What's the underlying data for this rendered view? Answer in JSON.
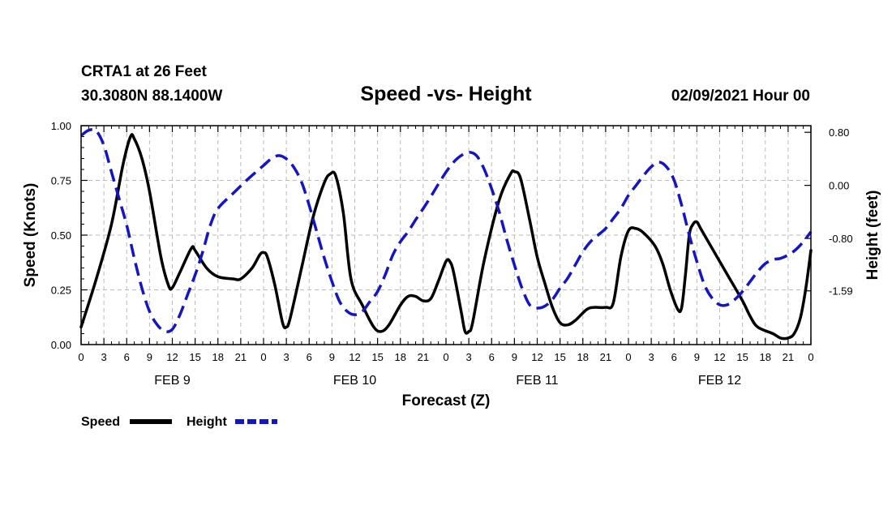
{
  "colors": {
    "speed": "#000000",
    "height": "#1414c8",
    "grid": "#bbbbbb",
    "frame": "#000000"
  },
  "chart_data": {
    "type": "line",
    "header": {
      "station": "CRTA1 at 26 Feet",
      "location": "30.3080N 88.1400W",
      "title": "Speed -vs- Height",
      "datetime": "02/09/2021 Hour 00"
    },
    "xlabel": "Forecast (Z)",
    "ylabel_left": "Speed (Knots)",
    "ylabel_right": "Height (feet)",
    "xlim": [
      0,
      96
    ],
    "ylim_left": [
      0,
      1.0
    ],
    "ylim_right": [
      -2.4,
      0.9
    ],
    "x_ticks": [
      0,
      3,
      6,
      9,
      12,
      15,
      18,
      21,
      24,
      27,
      30,
      33,
      36,
      39,
      42,
      45,
      48,
      51,
      54,
      57,
      60,
      63,
      66,
      69,
      72,
      75,
      78,
      81,
      84,
      87,
      90,
      93,
      96
    ],
    "x_tick_labels": [
      "0",
      "3",
      "6",
      "9",
      "12",
      "15",
      "18",
      "21",
      "0",
      "3",
      "6",
      "9",
      "12",
      "15",
      "18",
      "21",
      "0",
      "3",
      "6",
      "9",
      "12",
      "15",
      "18",
      "21",
      "0",
      "3",
      "6",
      "9",
      "12",
      "15",
      "18",
      "21",
      "0"
    ],
    "day_labels": [
      {
        "label": "FEB 9",
        "x": 12
      },
      {
        "label": "FEB 10",
        "x": 36
      },
      {
        "label": "FEB 11",
        "x": 60
      },
      {
        "label": "FEB 12",
        "x": 84
      }
    ],
    "left_ticks": [
      0.0,
      0.25,
      0.5,
      0.75,
      1.0
    ],
    "left_tick_labels": [
      "0.00",
      "0.25",
      "0.50",
      "0.75",
      "1.00"
    ],
    "right_ticks": [
      0.8,
      0.0,
      -0.8,
      -1.59
    ],
    "right_tick_labels": [
      "0.80",
      "0.00",
      "-0.80",
      "-1.59"
    ],
    "grid": true,
    "legend": {
      "position": "bottom-left"
    },
    "series": [
      {
        "name": "Speed",
        "axis": "left",
        "style": "solid",
        "points": [
          [
            0,
            0.08
          ],
          [
            2,
            0.3
          ],
          [
            4,
            0.55
          ],
          [
            5.5,
            0.82
          ],
          [
            6.5,
            0.95
          ],
          [
            7,
            0.94
          ],
          [
            8,
            0.85
          ],
          [
            9,
            0.7
          ],
          [
            10.5,
            0.4
          ],
          [
            11.5,
            0.27
          ],
          [
            12,
            0.26
          ],
          [
            13,
            0.33
          ],
          [
            14.5,
            0.44
          ],
          [
            15,
            0.43
          ],
          [
            16.5,
            0.35
          ],
          [
            18,
            0.31
          ],
          [
            20,
            0.3
          ],
          [
            21,
            0.3
          ],
          [
            22.5,
            0.35
          ],
          [
            23.5,
            0.41
          ],
          [
            24,
            0.42
          ],
          [
            24.5,
            0.4
          ],
          [
            25.5,
            0.27
          ],
          [
            26.5,
            0.1
          ],
          [
            27,
            0.08
          ],
          [
            27.5,
            0.12
          ],
          [
            29,
            0.35
          ],
          [
            30.5,
            0.58
          ],
          [
            32,
            0.74
          ],
          [
            32.8,
            0.78
          ],
          [
            33.5,
            0.77
          ],
          [
            34.5,
            0.6
          ],
          [
            35.5,
            0.3
          ],
          [
            37,
            0.18
          ],
          [
            38.5,
            0.08
          ],
          [
            39.5,
            0.06
          ],
          [
            40.5,
            0.09
          ],
          [
            42,
            0.18
          ],
          [
            43,
            0.22
          ],
          [
            44,
            0.22
          ],
          [
            45,
            0.2
          ],
          [
            46,
            0.21
          ],
          [
            47,
            0.29
          ],
          [
            48,
            0.38
          ],
          [
            48.5,
            0.38
          ],
          [
            49,
            0.33
          ],
          [
            50,
            0.15
          ],
          [
            50.5,
            0.06
          ],
          [
            51,
            0.06
          ],
          [
            51.5,
            0.1
          ],
          [
            53,
            0.38
          ],
          [
            55,
            0.66
          ],
          [
            56.5,
            0.78
          ],
          [
            57,
            0.79
          ],
          [
            57.8,
            0.76
          ],
          [
            59,
            0.57
          ],
          [
            60,
            0.4
          ],
          [
            61,
            0.28
          ],
          [
            62,
            0.17
          ],
          [
            63,
            0.1
          ],
          [
            64,
            0.09
          ],
          [
            65,
            0.11
          ],
          [
            66.5,
            0.16
          ],
          [
            67.5,
            0.17
          ],
          [
            69,
            0.17
          ],
          [
            70,
            0.19
          ],
          [
            71,
            0.4
          ],
          [
            72,
            0.52
          ],
          [
            73,
            0.53
          ],
          [
            74,
            0.51
          ],
          [
            75.5,
            0.45
          ],
          [
            76.5,
            0.37
          ],
          [
            77.5,
            0.25
          ],
          [
            78.5,
            0.16
          ],
          [
            79,
            0.17
          ],
          [
            79.5,
            0.32
          ],
          [
            80,
            0.5
          ],
          [
            80.5,
            0.55
          ],
          [
            81,
            0.56
          ],
          [
            81.5,
            0.53
          ],
          [
            83,
            0.44
          ],
          [
            85,
            0.32
          ],
          [
            87,
            0.2
          ],
          [
            88,
            0.13
          ],
          [
            89,
            0.08
          ],
          [
            91,
            0.05
          ],
          [
            92,
            0.03
          ],
          [
            93,
            0.03
          ],
          [
            93.8,
            0.05
          ],
          [
            94.6,
            0.12
          ],
          [
            95.3,
            0.25
          ],
          [
            96,
            0.43
          ]
        ]
      },
      {
        "name": "Height",
        "axis": "right",
        "style": "dashed",
        "points": [
          [
            0,
            0.75
          ],
          [
            1,
            0.83
          ],
          [
            2,
            0.82
          ],
          [
            3,
            0.6
          ],
          [
            4,
            0.2
          ],
          [
            5,
            -0.2
          ],
          [
            6,
            -0.6
          ],
          [
            7,
            -1.1
          ],
          [
            8,
            -1.55
          ],
          [
            9,
            -1.9
          ],
          [
            10,
            -2.1
          ],
          [
            11,
            -2.2
          ],
          [
            12,
            -2.17
          ],
          [
            13,
            -1.95
          ],
          [
            14,
            -1.65
          ],
          [
            15,
            -1.35
          ],
          [
            16,
            -1.0
          ],
          [
            17,
            -0.6
          ],
          [
            18,
            -0.35
          ],
          [
            20,
            -0.12
          ],
          [
            22,
            0.1
          ],
          [
            24,
            0.3
          ],
          [
            25,
            0.4
          ],
          [
            26,
            0.45
          ],
          [
            27,
            0.4
          ],
          [
            28,
            0.27
          ],
          [
            29,
            0.05
          ],
          [
            30,
            -0.3
          ],
          [
            31,
            -0.7
          ],
          [
            32,
            -1.1
          ],
          [
            33,
            -1.45
          ],
          [
            34,
            -1.75
          ],
          [
            35,
            -1.9
          ],
          [
            36,
            -1.95
          ],
          [
            37,
            -1.9
          ],
          [
            38,
            -1.75
          ],
          [
            39,
            -1.6
          ],
          [
            40,
            -1.35
          ],
          [
            41,
            -1.05
          ],
          [
            42,
            -0.85
          ],
          [
            43,
            -0.7
          ],
          [
            44,
            -0.52
          ],
          [
            45,
            -0.35
          ],
          [
            46,
            -0.17
          ],
          [
            47,
            0.02
          ],
          [
            48,
            0.2
          ],
          [
            49,
            0.35
          ],
          [
            50,
            0.45
          ],
          [
            51,
            0.5
          ],
          [
            52,
            0.45
          ],
          [
            53,
            0.25
          ],
          [
            54,
            -0.05
          ],
          [
            55,
            -0.4
          ],
          [
            56,
            -0.82
          ],
          [
            57,
            -1.2
          ],
          [
            58,
            -1.55
          ],
          [
            59,
            -1.8
          ],
          [
            60,
            -1.85
          ],
          [
            61,
            -1.82
          ],
          [
            62,
            -1.72
          ],
          [
            63,
            -1.55
          ],
          [
            64,
            -1.4
          ],
          [
            65,
            -1.2
          ],
          [
            66,
            -1.0
          ],
          [
            67,
            -0.85
          ],
          [
            68,
            -0.75
          ],
          [
            69,
            -0.65
          ],
          [
            70,
            -0.5
          ],
          [
            71,
            -0.35
          ],
          [
            72,
            -0.15
          ],
          [
            73,
            0.0
          ],
          [
            74,
            0.15
          ],
          [
            75,
            0.28
          ],
          [
            76,
            0.35
          ],
          [
            77,
            0.28
          ],
          [
            78,
            0.08
          ],
          [
            79,
            -0.3
          ],
          [
            80,
            -0.75
          ],
          [
            81,
            -1.15
          ],
          [
            82,
            -1.5
          ],
          [
            83,
            -1.7
          ],
          [
            84,
            -1.8
          ],
          [
            85,
            -1.8
          ],
          [
            86,
            -1.72
          ],
          [
            87,
            -1.6
          ],
          [
            88,
            -1.45
          ],
          [
            89,
            -1.3
          ],
          [
            90,
            -1.18
          ],
          [
            91,
            -1.12
          ],
          [
            92,
            -1.1
          ],
          [
            93,
            -1.05
          ],
          [
            94,
            -0.97
          ],
          [
            95,
            -0.85
          ],
          [
            96,
            -0.7
          ]
        ]
      }
    ]
  }
}
